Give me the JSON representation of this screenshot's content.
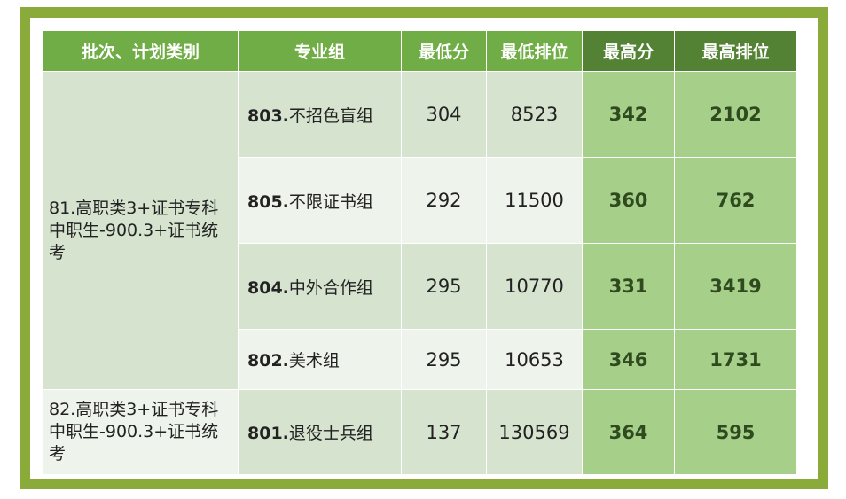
{
  "headers": {
    "batch": "批次、计划类别",
    "group": "专业组",
    "min_score": "最低分",
    "min_rank": "最低排位",
    "max_score": "最高分",
    "max_rank": "最高排位"
  },
  "batches": [
    {
      "label": "81.高职类3+证书专科中职生-900.3+证书统考"
    },
    {
      "label": "82.高职类3+证书专科中职生-900.3+证书统考"
    }
  ],
  "rows": [
    {
      "code": "803.",
      "name": "不招色盲组",
      "min_score": "304",
      "min_rank": "8523",
      "max_score": "342",
      "max_rank": "2102"
    },
    {
      "code": "805.",
      "name": "不限证书组",
      "min_score": "292",
      "min_rank": "11500",
      "max_score": "360",
      "max_rank": "762"
    },
    {
      "code": "804.",
      "name": "中外合作组",
      "min_score": "295",
      "min_rank": "10770",
      "max_score": "331",
      "max_rank": "3419"
    },
    {
      "code": "802.",
      "name": "美术组",
      "min_score": "295",
      "min_rank": "10653",
      "max_score": "346",
      "max_rank": "1731"
    },
    {
      "code": "801.",
      "name": "退役士兵组",
      "min_score": "137",
      "min_rank": "130569",
      "max_score": "364",
      "max_rank": "595"
    }
  ]
}
